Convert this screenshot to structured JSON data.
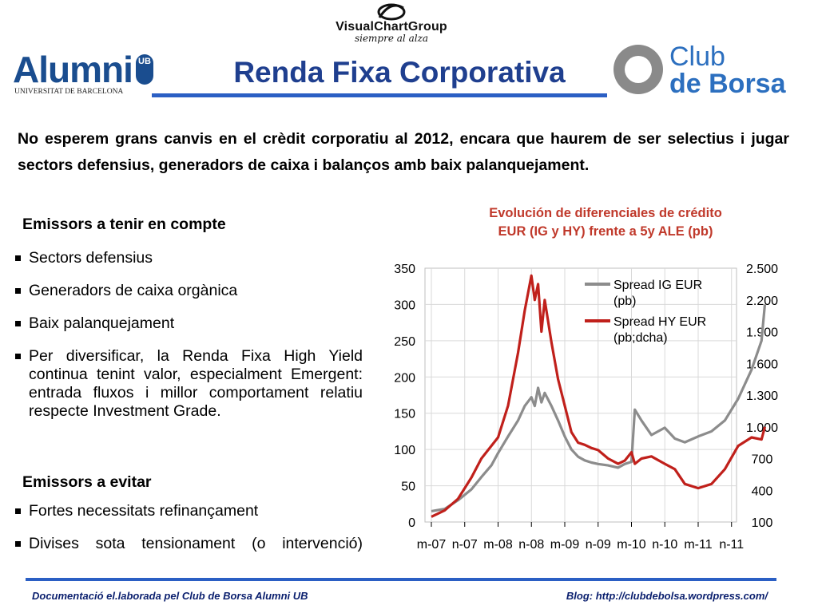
{
  "header": {
    "vcg_name": "VisualChartGroup",
    "vcg_tagline": "siempre al alza",
    "alumni_name": "Alumni",
    "alumni_badge": "UB",
    "alumni_sub": "UNIVERSITAT DE BARCELONA",
    "title": "Renda Fixa Corporativa",
    "club_line1": "Club",
    "club_line2": "de Borsa"
  },
  "intro": "No esperem grans canvis en el crèdit corporatiu al 2012, encara que haurem de ser selectius i jugar sectors defensius, generadors de caixa i balanços amb baix palanquejament.",
  "section1": {
    "heading": "Emissors a tenir en compte",
    "items": [
      "Sectors defensius",
      "Generadors de caixa orgànica",
      "Baix palanquejament",
      "Per diversificar, la Renda Fixa High Yield continua tenint valor, especialment Emergent: entrada fluxos i millor comportament relatiu respecte Investment Grade."
    ]
  },
  "section2": {
    "heading": "Emissors a evitar",
    "items": [
      "Fortes necessitats refinançament",
      "Divises sota tensionament (o intervenció)"
    ]
  },
  "chart_data": {
    "type": "line",
    "title": "Evolución de diferenciales de crédito EUR (IG y HY) frente a 5y ALE (pb)",
    "title_line1": "Evolución de diferenciales de crédito",
    "title_line2": "EUR (IG y HY) frente a 5y ALE (pb)",
    "x_labels": [
      "m-07",
      "n-07",
      "m-08",
      "n-08",
      "m-09",
      "n-09",
      "m-10",
      "n-10",
      "m-11",
      "n-11"
    ],
    "y_left": {
      "ticks": [
        "0",
        "50",
        "100",
        "150",
        "200",
        "250",
        "300",
        "350"
      ],
      "range": [
        0,
        350
      ]
    },
    "y_right": {
      "ticks": [
        "100",
        "400",
        "700",
        "1.000",
        "1.300",
        "1.600",
        "1.900",
        "2.200",
        "2.500"
      ],
      "range": [
        100,
        2500
      ]
    },
    "grid": true,
    "legend_position": "top-left",
    "series": [
      {
        "name": "Spread IG EUR (pb)",
        "legend_line1": "Spread IG EUR",
        "legend_line2": "(pb)",
        "axis": "left",
        "color": "#8c8c8c",
        "x": [
          0,
          0.4,
          0.8,
          1.2,
          1.5,
          1.8,
          2.0,
          2.3,
          2.6,
          2.8,
          3.0,
          3.1,
          3.2,
          3.3,
          3.4,
          3.6,
          3.8,
          4.0,
          4.2,
          4.4,
          4.6,
          4.8,
          5.0,
          5.3,
          5.6,
          5.8,
          6.0,
          6.1,
          6.3,
          6.6,
          7.0,
          7.3,
          7.6,
          8.0,
          8.4,
          8.8,
          9.2,
          9.6,
          9.9,
          10.0
        ],
        "values": [
          15,
          18,
          30,
          45,
          62,
          78,
          95,
          118,
          140,
          160,
          172,
          160,
          185,
          165,
          178,
          160,
          140,
          118,
          100,
          90,
          85,
          82,
          80,
          78,
          75,
          80,
          83,
          155,
          140,
          120,
          130,
          115,
          110,
          118,
          125,
          140,
          170,
          210,
          250,
          300
        ]
      },
      {
        "name": "Spread HY EUR (pb;dcha)",
        "legend_line1": "Spread HY EUR",
        "legend_line2": "(pb;dcha)",
        "axis": "right",
        "color": "#c0201b",
        "x": [
          0,
          0.4,
          0.8,
          1.2,
          1.5,
          1.8,
          2.0,
          2.3,
          2.6,
          2.8,
          3.0,
          3.1,
          3.2,
          3.3,
          3.4,
          3.6,
          3.8,
          4.0,
          4.2,
          4.4,
          4.6,
          4.8,
          5.0,
          5.3,
          5.6,
          5.8,
          6.0,
          6.1,
          6.3,
          6.6,
          7.0,
          7.3,
          7.6,
          8.0,
          8.4,
          8.8,
          9.2,
          9.6,
          9.9,
          10.0
        ],
        "values": [
          150,
          210,
          320,
          520,
          700,
          820,
          900,
          1200,
          1700,
          2100,
          2430,
          2200,
          2350,
          1900,
          2200,
          1800,
          1450,
          1200,
          950,
          850,
          830,
          800,
          780,
          700,
          650,
          680,
          760,
          650,
          700,
          720,
          650,
          600,
          460,
          420,
          460,
          600,
          820,
          900,
          880,
          1000
        ]
      }
    ]
  },
  "footer": {
    "left": "Documentació el.laborada pel Club de Borsa Alumni UB",
    "right": "Blog: http://clubdebolsa.wordpress.com/"
  },
  "colors": {
    "title_blue": "#1f3f8f",
    "rule_blue": "#2b5fc4",
    "chart_title_red": "#c0392b",
    "footer_navy": "#0a1f6e"
  }
}
